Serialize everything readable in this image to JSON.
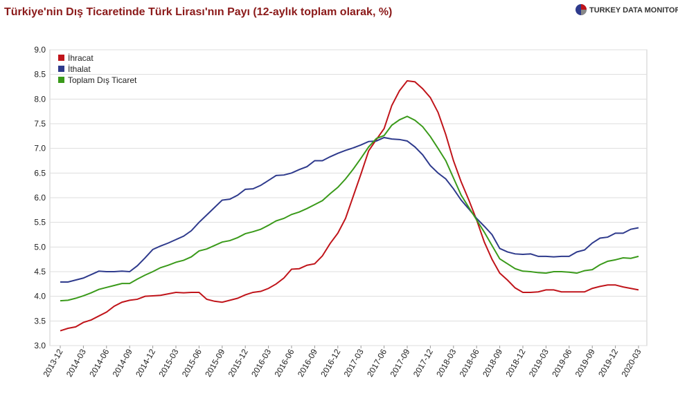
{
  "chart_data": {
    "type": "line",
    "title": "Türkiye'nin Dış Ticaretinde Türk Lirası'nın Payı (12-aylık toplam olarak, %)",
    "logo": "TURKEY DATA MONITOR",
    "categories": [
      "2013-12",
      null,
      null,
      "2014-03",
      null,
      null,
      "2014-06",
      null,
      null,
      "2014-09",
      null,
      null,
      "2014-12",
      null,
      null,
      "2015-03",
      null,
      null,
      "2015-06",
      null,
      null,
      "2015-09",
      null,
      null,
      "2015-12",
      null,
      null,
      "2016-03",
      null,
      null,
      "2016-06",
      null,
      null,
      "2016-09",
      null,
      null,
      "2016-12",
      null,
      null,
      "2017-03",
      null,
      null,
      "2017-06",
      null,
      null,
      "2017-09",
      null,
      null,
      "2017-12",
      null,
      null,
      "2018-03",
      null,
      null,
      "2018-06",
      null,
      null,
      "2018-09",
      null,
      null,
      "2018-12",
      null,
      null,
      "2019-03",
      null,
      null,
      "2019-06",
      null,
      null,
      "2019-09",
      null,
      null,
      "2019-12",
      null,
      null,
      "2020-03"
    ],
    "series": [
      {
        "name": "İhracat",
        "color": "#c0141a",
        "values": [
          3.3,
          3.35,
          3.38,
          3.47,
          3.52,
          3.6,
          3.68,
          3.8,
          3.88,
          3.92,
          3.94,
          4.0,
          4.01,
          4.02,
          4.05,
          4.08,
          4.07,
          4.08,
          4.08,
          3.94,
          3.9,
          3.88,
          3.92,
          3.96,
          4.03,
          4.08,
          4.1,
          4.16,
          4.25,
          4.37,
          4.55,
          4.56,
          4.63,
          4.66,
          4.82,
          5.07,
          5.28,
          5.58,
          6.03,
          6.48,
          6.95,
          7.18,
          7.4,
          7.87,
          8.17,
          8.37,
          8.35,
          8.21,
          8.03,
          7.73,
          7.28,
          6.75,
          6.32,
          5.95,
          5.55,
          5.1,
          4.75,
          4.47,
          4.33,
          4.17,
          4.08,
          4.08,
          4.09,
          4.13,
          4.13,
          4.09,
          4.09,
          4.09,
          4.09,
          4.16,
          4.2,
          4.23,
          4.23,
          4.19,
          4.16,
          4.13
        ]
      },
      {
        "name": "İthalat",
        "color": "#2e3a8c",
        "values": [
          4.29,
          4.29,
          4.33,
          4.37,
          4.44,
          4.51,
          4.5,
          4.5,
          4.51,
          4.5,
          4.62,
          4.78,
          4.95,
          5.02,
          5.08,
          5.15,
          5.22,
          5.33,
          5.5,
          5.65,
          5.8,
          5.95,
          5.97,
          6.05,
          6.17,
          6.18,
          6.25,
          6.35,
          6.45,
          6.46,
          6.5,
          6.57,
          6.63,
          6.75,
          6.75,
          6.83,
          6.9,
          6.96,
          7.01,
          7.07,
          7.14,
          7.15,
          7.22,
          7.19,
          7.18,
          7.15,
          7.03,
          6.87,
          6.65,
          6.5,
          6.38,
          6.18,
          5.95,
          5.77,
          5.58,
          5.42,
          5.25,
          4.97,
          4.9,
          4.86,
          4.85,
          4.86,
          4.81,
          4.81,
          4.8,
          4.81,
          4.81,
          4.9,
          4.94,
          5.08,
          5.18,
          5.2,
          5.28,
          5.28,
          5.36,
          5.39
        ]
      },
      {
        "name": "Toplam Dış Ticaret",
        "color": "#3a9a1a",
        "values": [
          3.91,
          3.92,
          3.96,
          4.01,
          4.07,
          4.14,
          4.18,
          4.22,
          4.26,
          4.26,
          4.35,
          4.43,
          4.5,
          4.58,
          4.63,
          4.69,
          4.73,
          4.8,
          4.92,
          4.96,
          5.03,
          5.1,
          5.13,
          5.19,
          5.27,
          5.31,
          5.36,
          5.44,
          5.53,
          5.58,
          5.66,
          5.71,
          5.78,
          5.86,
          5.94,
          6.08,
          6.21,
          6.38,
          6.58,
          6.8,
          7.03,
          7.2,
          7.26,
          7.47,
          7.58,
          7.65,
          7.57,
          7.44,
          7.24,
          7.0,
          6.75,
          6.4,
          6.05,
          5.8,
          5.55,
          5.3,
          5.03,
          4.76,
          4.66,
          4.56,
          4.51,
          4.5,
          4.48,
          4.47,
          4.5,
          4.5,
          4.49,
          4.47,
          4.52,
          4.54,
          4.64,
          4.71,
          4.74,
          4.78,
          4.77,
          4.81
        ]
      }
    ],
    "ylim": [
      3,
      9
    ],
    "yticks": [
      {
        "value": 3,
        "label": "3.0"
      },
      3.5,
      {
        "value": 4,
        "label": "4.0"
      },
      4.5,
      {
        "value": 5,
        "label": "5.0"
      },
      5.5,
      {
        "value": 6,
        "label": "6.0"
      },
      6.5,
      {
        "value": 7,
        "label": "7.0"
      },
      7.5,
      {
        "value": 8,
        "label": "8.0"
      },
      8.5,
      {
        "value": 9,
        "label": "9.0"
      }
    ],
    "grid": true,
    "legend": "top-left"
  }
}
